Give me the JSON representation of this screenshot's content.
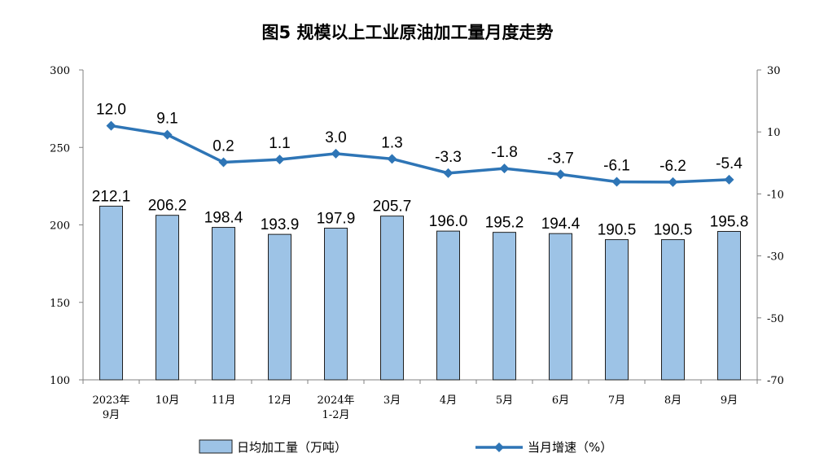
{
  "chart_data": {
    "type": "bar+line",
    "title": "图5 规模以上工业原油加工量月度走势",
    "categories": [
      [
        "2023年",
        "9月"
      ],
      [
        "10月"
      ],
      [
        "11月"
      ],
      [
        "12月"
      ],
      [
        "2024年",
        "1-2月"
      ],
      [
        "3月"
      ],
      [
        "4月"
      ],
      [
        "5月"
      ],
      [
        "6月"
      ],
      [
        "7月"
      ],
      [
        "8月"
      ],
      [
        "9月"
      ]
    ],
    "series": [
      {
        "name": "日均加工量（万吨）",
        "type": "bar",
        "axis": "left",
        "values": [
          212.1,
          206.2,
          198.4,
          193.9,
          197.9,
          205.7,
          196.0,
          195.2,
          194.4,
          190.5,
          190.5,
          195.8
        ],
        "labels": [
          "212.1",
          "206.2",
          "198.4",
          "193.9",
          "197.9",
          "205.7",
          "196.0",
          "195.2",
          "194.4",
          "190.5",
          "190.5",
          "195.8"
        ]
      },
      {
        "name": "当月增速（%）",
        "type": "line",
        "axis": "right",
        "values": [
          12.0,
          9.1,
          0.2,
          1.1,
          3.0,
          1.3,
          -3.3,
          -1.8,
          -3.7,
          -6.1,
          -6.2,
          -5.4
        ],
        "labels": [
          "12.0",
          "9.1",
          "0.2",
          "1.1",
          "3.0",
          "1.3",
          "-3.3",
          "-1.8",
          "-3.7",
          "-6.1",
          "-6.2",
          "-5.4"
        ]
      }
    ],
    "left_axis": {
      "ylim": [
        100,
        300
      ],
      "ticks": [
        "300",
        "250",
        "200",
        "150",
        "100"
      ]
    },
    "right_axis": {
      "ylim": [
        -70,
        30
      ],
      "ticks": [
        "30",
        "10",
        "-10",
        "-30",
        "-50",
        "-70"
      ]
    },
    "grid": false,
    "legend": "bottom",
    "colors": {
      "bar_fill": "#9dc3e6",
      "bar_stroke": "#1f1f1f",
      "line": "#2e75b6"
    }
  }
}
